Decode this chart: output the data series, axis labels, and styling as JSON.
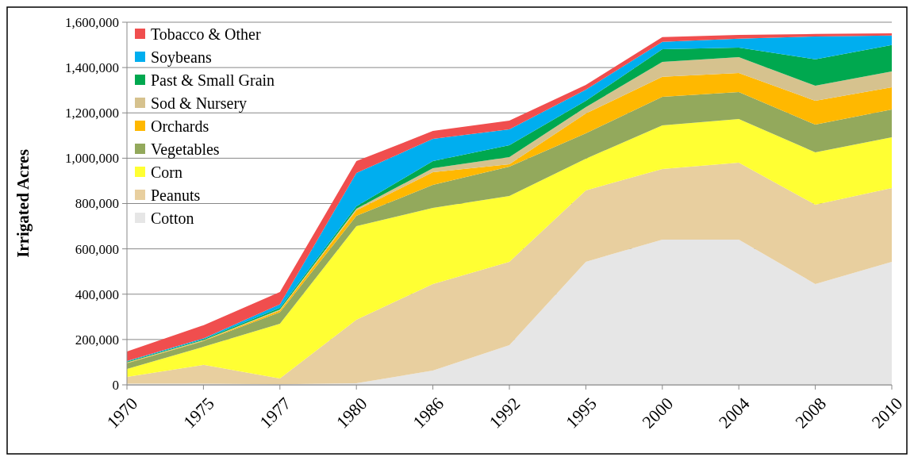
{
  "chart_data": {
    "type": "area",
    "stacked": true,
    "ylabel": "Irrigated Acres",
    "categories": [
      "1970",
      "1975",
      "1977",
      "1980",
      "1986",
      "1992",
      "1995",
      "2000",
      "2004",
      "2008",
      "2010"
    ],
    "ylim": [
      0,
      1600000
    ],
    "yticks": [
      {
        "value": 0,
        "label": "0"
      },
      {
        "value": 200000,
        "label": "200,000"
      },
      {
        "value": 400000,
        "label": "400,000"
      },
      {
        "value": 600000,
        "label": "600,000"
      },
      {
        "value": 800000,
        "label": "800,000"
      },
      {
        "value": 1000000,
        "label": "1,000,000"
      },
      {
        "value": 1200000,
        "label": "1,200,000"
      },
      {
        "value": 1400000,
        "label": "1,400,000"
      },
      {
        "value": 1600000,
        "label": "1,600,000"
      }
    ],
    "grid": "y",
    "legend": "top left",
    "series": [
      {
        "name": "Cotton",
        "color": "#e6e6e6",
        "values": [
          5000,
          5000,
          3000,
          7000,
          63000,
          175000,
          543000,
          641000,
          641000,
          445000,
          543000
        ]
      },
      {
        "name": "Peanuts",
        "color": "#e8cf9f",
        "values": [
          30000,
          83000,
          25000,
          280000,
          382000,
          368000,
          315000,
          311000,
          339000,
          350000,
          325000
        ]
      },
      {
        "name": "Corn",
        "color": "#ffff33",
        "values": [
          35000,
          80000,
          242000,
          413000,
          336000,
          290000,
          140000,
          193000,
          193000,
          231000,
          224000
        ]
      },
      {
        "name": "Vegetables",
        "color": "#93a95c",
        "values": [
          25000,
          25000,
          50000,
          46000,
          101000,
          130000,
          112000,
          126000,
          119000,
          122000,
          123000
        ]
      },
      {
        "name": "Orchards",
        "color": "#ffb800",
        "values": [
          2000,
          2000,
          8000,
          24000,
          56000,
          10000,
          87000,
          88000,
          84000,
          105000,
          98000
        ]
      },
      {
        "name": "Sod & Nursery",
        "color": "#d6c28e",
        "values": [
          2000,
          2000,
          5000,
          7000,
          18000,
          32000,
          28000,
          66000,
          70000,
          67000,
          70000
        ]
      },
      {
        "name": "Past & Small Grain",
        "color": "#00a84f",
        "values": [
          3000,
          4000,
          7000,
          11000,
          31000,
          52000,
          28000,
          56000,
          42000,
          116000,
          116000
        ]
      },
      {
        "name": "Soybeans",
        "color": "#00aeef",
        "values": [
          3000,
          4000,
          15000,
          147000,
          98000,
          70000,
          49000,
          32000,
          39000,
          101000,
          42000
        ]
      },
      {
        "name": "Tobacco & Other",
        "color": "#f04e4e",
        "values": [
          42000,
          58000,
          55000,
          52000,
          35000,
          39000,
          21000,
          21000,
          17000,
          11000,
          10000
        ]
      }
    ]
  }
}
